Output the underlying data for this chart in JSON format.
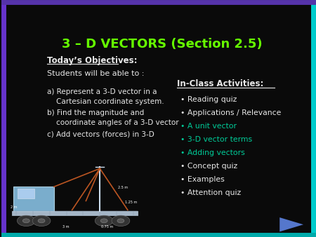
{
  "title": "3 – D VECTORS (Section 2.5)",
  "title_color": "#66ff00",
  "background_color": "#0a0a0a",
  "border_color_left": "#6633cc",
  "border_color_right": "#00cccc",
  "text_color_white": "#e8e8e8",
  "text_color_green": "#00cc99",
  "objectives_header": "Today’s Objectives:",
  "objectives_sub": "Students will be able to :",
  "objectives_items": [
    "a) Represent a 3-D vector in a\n    Cartesian coordinate system.",
    "b) Find the magnitude and\n    coordinate angles of a 3-D vector",
    "c) Add vectors (forces) in 3-D"
  ],
  "activities_header": "In-Class Activities:",
  "activities_items": [
    "Reading quiz",
    "Applications / Relevance",
    "A unit vector",
    "3-D vector terms",
    "Adding vectors",
    "Concept quiz",
    "Examples",
    "Attention quiz"
  ],
  "activities_colors": [
    "#e8e8e8",
    "#e8e8e8",
    "#00cc99",
    "#00cc99",
    "#00cc99",
    "#e8e8e8",
    "#e8e8e8",
    "#e8e8e8"
  ]
}
